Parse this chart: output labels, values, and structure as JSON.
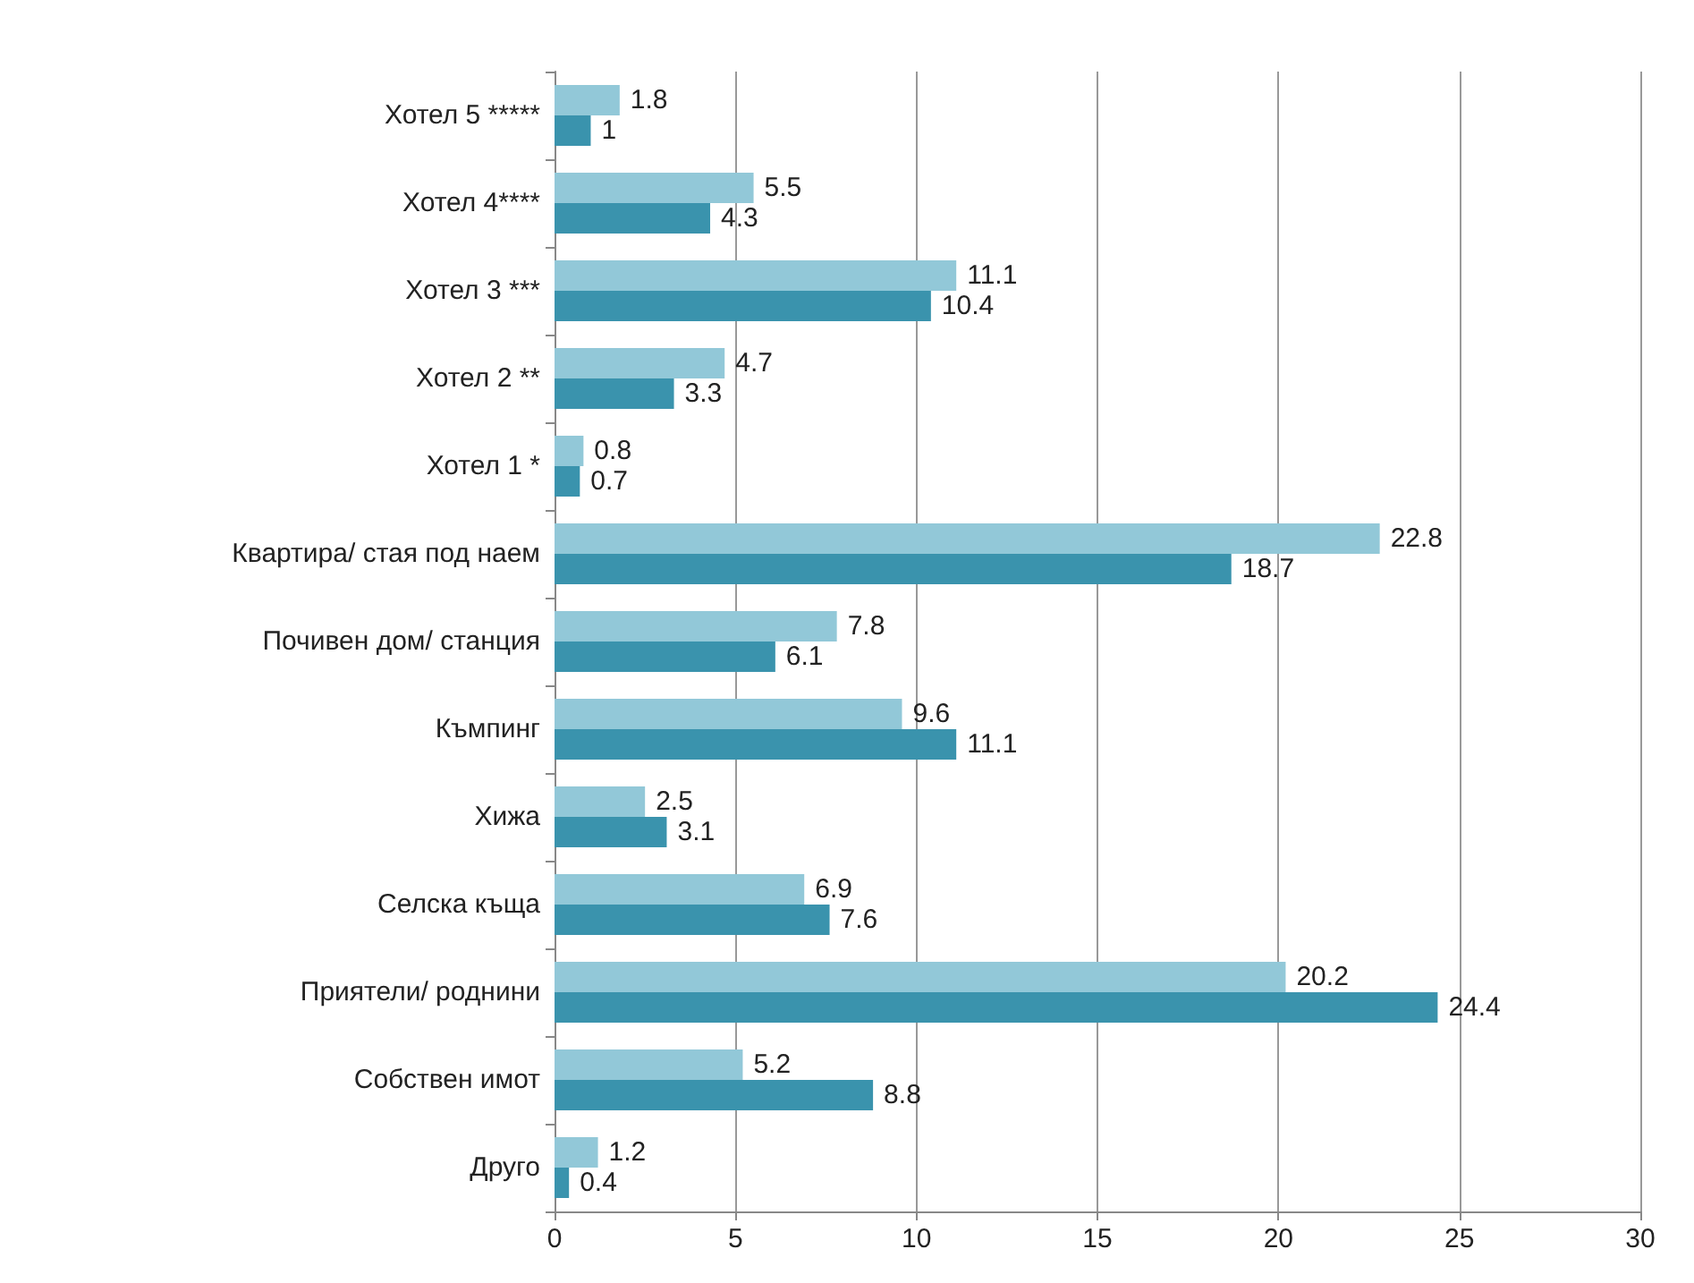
{
  "chart_data": {
    "type": "bar",
    "orientation": "horizontal",
    "categories": [
      "Хотел 5 *****",
      "Хотел 4****",
      "Хотел 3 ***",
      "Хотел 2 **",
      "Хотел 1 *",
      "Квартира/ стая под наем",
      "Почивен дом/ станция",
      "Къмпинг",
      "Хижа",
      "Селска къща",
      "Приятели/ роднини",
      "Собствен имот",
      "Друго"
    ],
    "series": [
      {
        "color": "#92c8d8",
        "values": [
          1.8,
          5.5,
          11.1,
          4.7,
          0.8,
          22.8,
          7.8,
          9.6,
          2.5,
          6.9,
          20.2,
          5.2,
          1.2
        ]
      },
      {
        "color": "#3a93ad",
        "values": [
          1,
          4.3,
          10.4,
          3.3,
          0.7,
          18.7,
          6.1,
          11.1,
          3.1,
          7.6,
          24.4,
          8.8,
          0.4
        ]
      }
    ],
    "xlim": [
      0,
      30
    ],
    "xticks": [
      0,
      5,
      10,
      15,
      20,
      25,
      30
    ],
    "grid": "x",
    "data_labels": true
  }
}
